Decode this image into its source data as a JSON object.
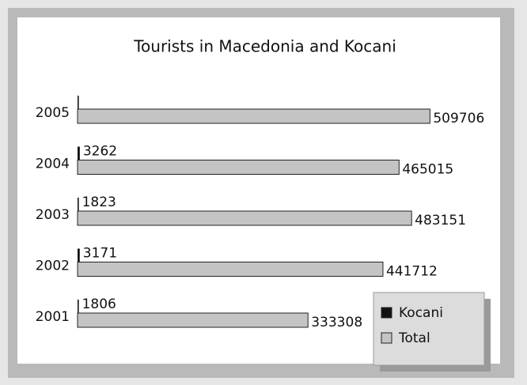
{
  "chart_data": {
    "type": "bar",
    "orientation": "horizontal",
    "title": "Tourists in Macedonia and Kocani",
    "categories": [
      "2005",
      "2004",
      "2003",
      "2002",
      "2001"
    ],
    "series": [
      {
        "name": "Kocani",
        "color": "#111111",
        "values": [
          1800,
          3262,
          1823,
          3171,
          1806
        ],
        "value_labels": [
          null,
          "3262",
          "1823",
          "3171",
          "1806"
        ]
      },
      {
        "name": "Total",
        "color": "#c4c4c4",
        "values": [
          509706,
          465015,
          483151,
          441712,
          333308
        ]
      }
    ],
    "xlim": [
      0,
      515000
    ],
    "legend": "lower right"
  }
}
